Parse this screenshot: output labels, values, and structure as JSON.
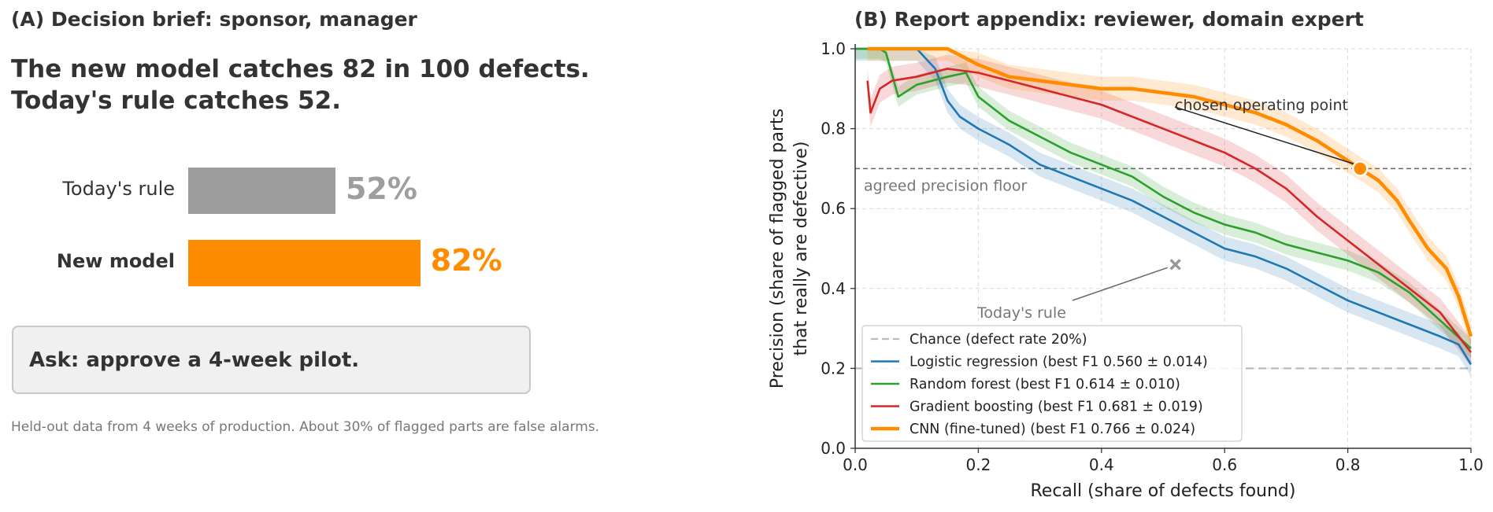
{
  "panel_a": {
    "title": "(A) Decision brief: sponsor, manager",
    "headline_line1": "The new model catches 82 in 100 defects.",
    "headline_line2": "Today's rule catches 52.",
    "bars": [
      {
        "label": "Today's rule",
        "value": 52,
        "value_label": "52%",
        "color": "#9e9e9e"
      },
      {
        "label": "New model",
        "value": 82,
        "value_label": "82%",
        "color": "#ff8c00"
      }
    ],
    "ask": "Ask: approve a 4-week pilot.",
    "footnote": "Held-out data from 4 weeks of production. About 30% of flagged parts are false alarms."
  },
  "panel_b": {
    "title": "(B) Report appendix: reviewer, domain expert"
  },
  "chart_data": {
    "type": "line",
    "xlabel": "Recall (share of defects found)",
    "ylabel_line1": "Precision (share of flagged parts",
    "ylabel_line2": "that really are defective)",
    "xlim": [
      0,
      1
    ],
    "ylim": [
      0,
      1
    ],
    "xticks": [
      0.0,
      0.2,
      0.4,
      0.6,
      0.8,
      1.0
    ],
    "yticks": [
      0.0,
      0.2,
      0.4,
      0.6,
      0.8,
      1.0
    ],
    "grid": true,
    "legend_position": "lower-left",
    "chance": {
      "label": "Chance (defect rate 20%)",
      "y": 0.2,
      "color": "#bbbbbb"
    },
    "precision_floor": {
      "label": "agreed precision floor",
      "y": 0.7,
      "color": "#666666"
    },
    "series": [
      {
        "name": "Logistic regression  (best F1 0.560 ± 0.014)",
        "color": "#1f77b4",
        "band": 0.03,
        "x": [
          0.0,
          0.05,
          0.1,
          0.13,
          0.15,
          0.17,
          0.2,
          0.25,
          0.3,
          0.35,
          0.4,
          0.45,
          0.5,
          0.55,
          0.6,
          0.65,
          0.7,
          0.75,
          0.8,
          0.85,
          0.9,
          0.95,
          0.98,
          1.0
        ],
        "y": [
          1.0,
          1.0,
          1.0,
          0.95,
          0.87,
          0.83,
          0.8,
          0.76,
          0.71,
          0.68,
          0.65,
          0.62,
          0.58,
          0.54,
          0.5,
          0.48,
          0.45,
          0.41,
          0.37,
          0.34,
          0.31,
          0.28,
          0.26,
          0.21
        ]
      },
      {
        "name": "Random forest  (best F1 0.614 ± 0.010)",
        "color": "#2ca02c",
        "band": 0.025,
        "x": [
          0.0,
          0.04,
          0.05,
          0.07,
          0.1,
          0.15,
          0.18,
          0.2,
          0.25,
          0.3,
          0.35,
          0.4,
          0.45,
          0.5,
          0.55,
          0.6,
          0.65,
          0.7,
          0.75,
          0.8,
          0.85,
          0.9,
          0.95,
          1.0
        ],
        "y": [
          1.0,
          1.0,
          0.99,
          0.88,
          0.91,
          0.93,
          0.94,
          0.88,
          0.82,
          0.78,
          0.74,
          0.71,
          0.68,
          0.63,
          0.59,
          0.56,
          0.54,
          0.51,
          0.49,
          0.47,
          0.44,
          0.39,
          0.32,
          0.25
        ]
      },
      {
        "name": "Gradient boosting  (best F1 0.681 ± 0.019)",
        "color": "#d62728",
        "band": 0.035,
        "x": [
          0.02,
          0.025,
          0.04,
          0.06,
          0.1,
          0.15,
          0.2,
          0.25,
          0.3,
          0.35,
          0.4,
          0.45,
          0.5,
          0.55,
          0.6,
          0.65,
          0.7,
          0.75,
          0.8,
          0.85,
          0.9,
          0.95,
          1.0
        ],
        "y": [
          0.92,
          0.84,
          0.9,
          0.92,
          0.93,
          0.95,
          0.94,
          0.92,
          0.9,
          0.88,
          0.86,
          0.83,
          0.8,
          0.77,
          0.74,
          0.7,
          0.65,
          0.58,
          0.52,
          0.46,
          0.4,
          0.34,
          0.24
        ]
      },
      {
        "name": "CNN (fine-tuned)  (best F1 0.766 ± 0.024)",
        "color": "#ff8c00",
        "band": 0.03,
        "x": [
          0.02,
          0.05,
          0.1,
          0.15,
          0.2,
          0.25,
          0.3,
          0.35,
          0.4,
          0.45,
          0.5,
          0.55,
          0.6,
          0.65,
          0.7,
          0.75,
          0.8,
          0.82,
          0.85,
          0.88,
          0.9,
          0.93,
          0.96,
          0.98,
          1.0
        ],
        "y": [
          1.0,
          1.0,
          1.0,
          1.0,
          0.96,
          0.93,
          0.92,
          0.91,
          0.9,
          0.9,
          0.89,
          0.88,
          0.86,
          0.84,
          0.81,
          0.77,
          0.72,
          0.7,
          0.67,
          0.62,
          0.57,
          0.5,
          0.45,
          0.38,
          0.28
        ]
      }
    ],
    "chosen_point": {
      "x": 0.82,
      "y": 0.7,
      "label": "chosen operating point",
      "color": "#ff8c00"
    },
    "todays_rule": {
      "x": 0.52,
      "y": 0.46,
      "label": "Today's rule",
      "color": "#999999"
    }
  }
}
